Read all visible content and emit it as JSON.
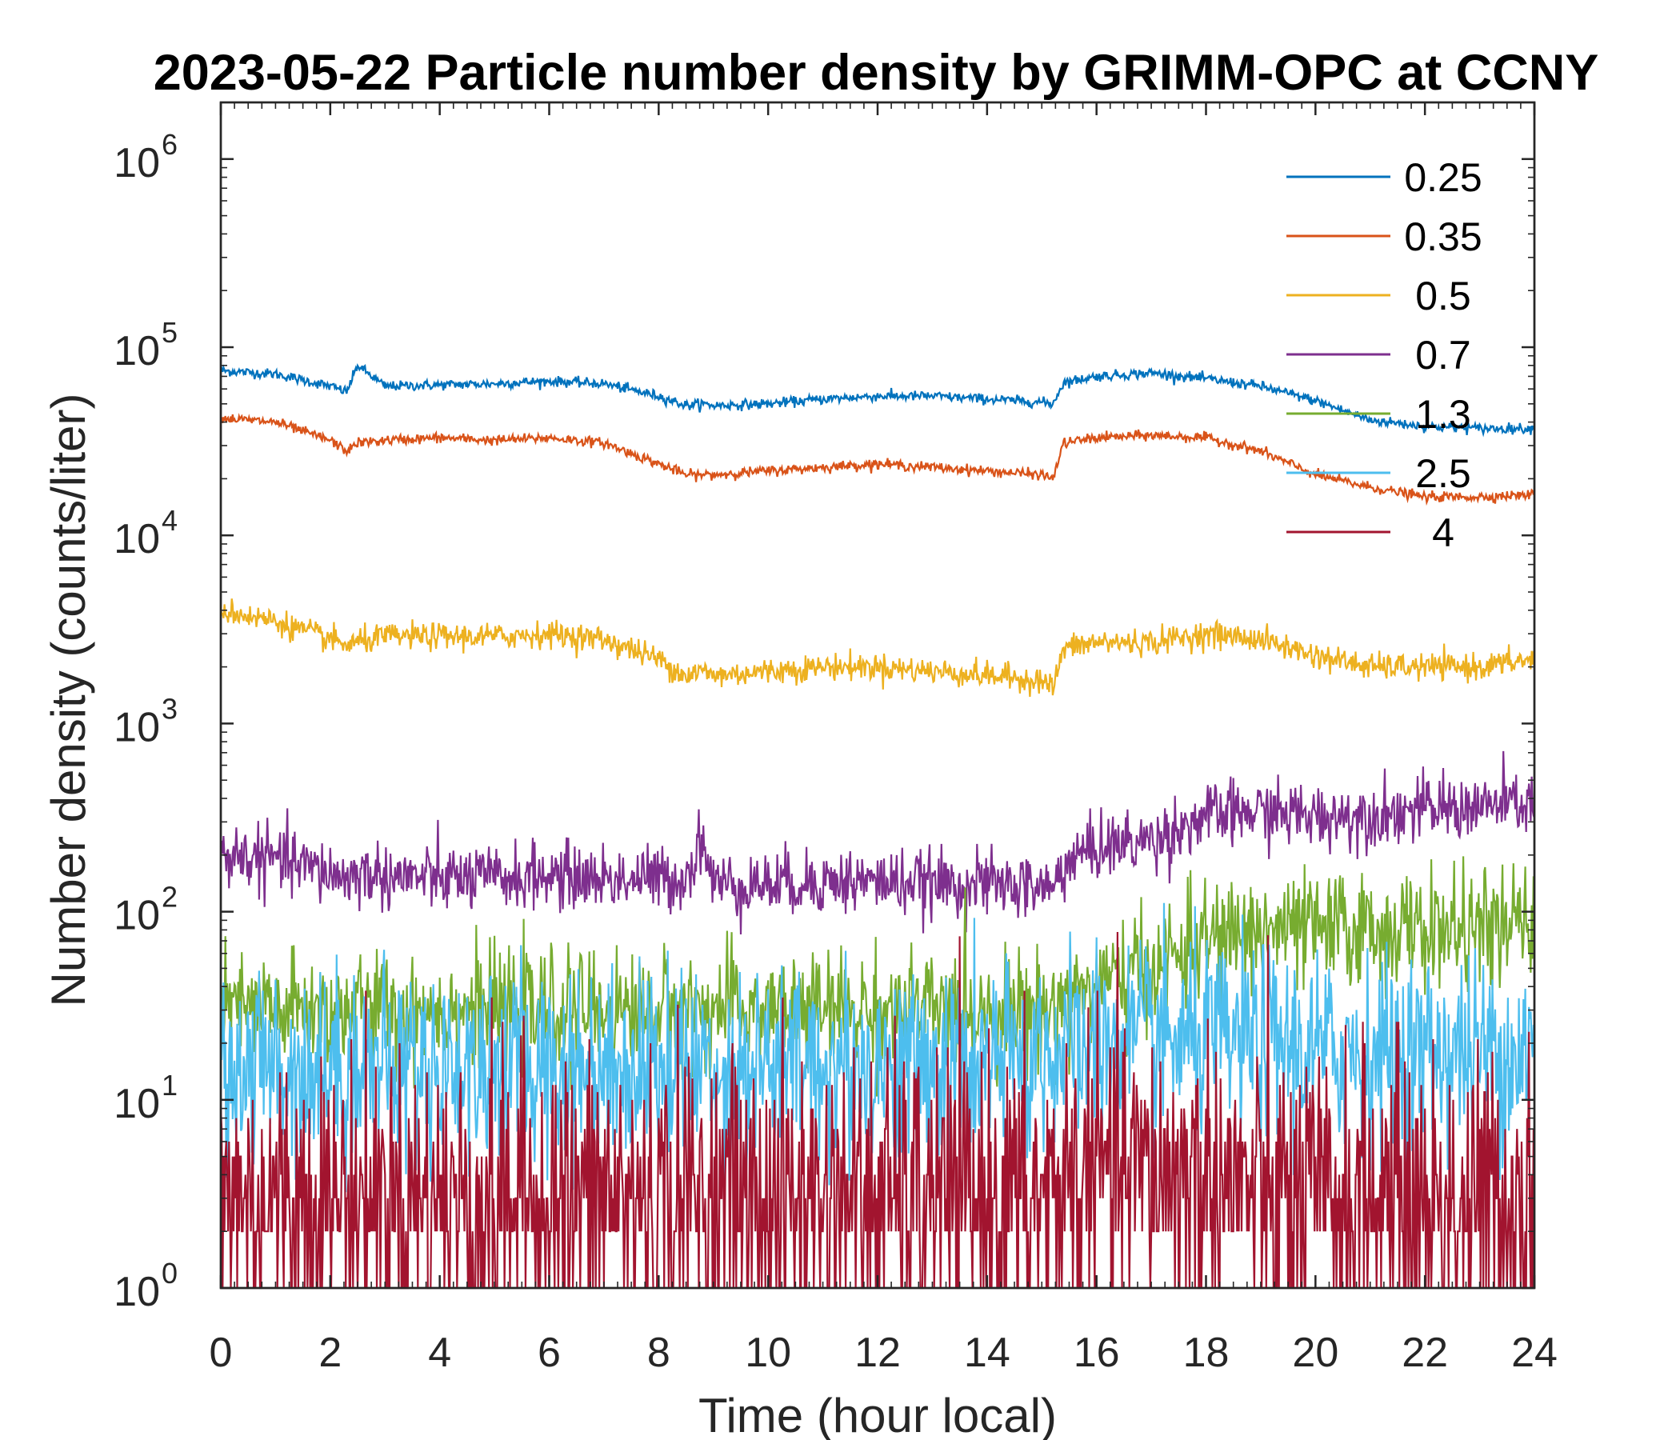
{
  "chart_data": {
    "type": "line",
    "title": "2023-05-22 Particle number density by GRIMM-OPC at CCNY",
    "xlabel": "Time (hour local)",
    "ylabel": "Number density (counts/liter)",
    "xlim": [
      0,
      24
    ],
    "ylim": [
      1,
      2000000
    ],
    "yscale": "log",
    "x_ticks": [
      0,
      2,
      4,
      6,
      8,
      10,
      12,
      14,
      16,
      18,
      20,
      22,
      24
    ],
    "x_tick_labels": [
      "0",
      "2",
      "4",
      "6",
      "8",
      "10",
      "12",
      "14",
      "16",
      "18",
      "20",
      "22",
      "24"
    ],
    "y_ticks": [
      1,
      10,
      100,
      1000,
      10000,
      100000,
      1000000
    ],
    "y_tick_labels": [
      {
        "base": "10",
        "exp": "0"
      },
      {
        "base": "10",
        "exp": "1"
      },
      {
        "base": "10",
        "exp": "2"
      },
      {
        "base": "10",
        "exp": "3"
      },
      {
        "base": "10",
        "exp": "4"
      },
      {
        "base": "10",
        "exp": "5"
      },
      {
        "base": "10",
        "exp": "6"
      }
    ],
    "grid": false,
    "legend_position": "top-right",
    "x": [
      0,
      1,
      2,
      2.3,
      2.5,
      3,
      4,
      5,
      6,
      7,
      8,
      8.5,
      8.8,
      9,
      10,
      11,
      12,
      13,
      14,
      15,
      15.2,
      15.4,
      16,
      17,
      18,
      19,
      20,
      21,
      22,
      23,
      24
    ],
    "series": [
      {
        "name": "0.25",
        "color": "#0072BD",
        "noise": 0.03,
        "values": [
          75000,
          72000,
          62000,
          58000,
          80000,
          62000,
          63000,
          64000,
          66000,
          64000,
          55000,
          49000,
          50000,
          49000,
          50000,
          53000,
          55000,
          55000,
          53000,
          51000,
          50000,
          65000,
          70000,
          73000,
          68000,
          62000,
          52000,
          41000,
          38000,
          37000,
          37000
        ]
      },
      {
        "name": "0.35",
        "color": "#D95319",
        "noise": 0.03,
        "values": [
          42000,
          40000,
          32000,
          28000,
          31000,
          32000,
          33000,
          32000,
          33000,
          31000,
          24000,
          21000,
          21000,
          21000,
          22000,
          23000,
          24000,
          23000,
          22000,
          21000,
          20000,
          31000,
          33000,
          34000,
          33000,
          28000,
          21000,
          18000,
          16000,
          16000,
          16500
        ]
      },
      {
        "name": "0.5",
        "color": "#EDB120",
        "noise": 0.08,
        "values": [
          4000,
          3500,
          2800,
          2600,
          2700,
          2900,
          2900,
          2900,
          3000,
          2800,
          2200,
          1800,
          1900,
          1800,
          1900,
          2000,
          2000,
          1900,
          1800,
          1700,
          1550,
          2500,
          2700,
          2700,
          3000,
          2800,
          2300,
          2000,
          2000,
          2000,
          2200
        ]
      },
      {
        "name": "0.7",
        "color": "#7E2F8E",
        "noise": 0.2,
        "values": [
          200,
          190,
          160,
          150,
          160,
          155,
          150,
          150,
          155,
          150,
          150,
          150,
          250,
          140,
          140,
          145,
          145,
          140,
          140,
          135,
          130,
          180,
          220,
          240,
          320,
          340,
          320,
          330,
          350,
          360,
          380
        ]
      },
      {
        "name": "1.3",
        "color": "#77AC30",
        "noise": 0.35,
        "values": [
          30,
          30,
          30,
          30,
          30,
          30,
          30,
          30,
          30,
          30,
          30,
          30,
          30,
          30,
          30,
          30,
          30,
          30,
          30,
          30,
          30,
          35,
          40,
          50,
          70,
          80,
          80,
          80,
          80,
          80,
          85
        ]
      },
      {
        "name": "2.5",
        "color": "#4DBEEE",
        "noise": 0.6,
        "values": [
          15,
          15,
          15,
          15,
          15,
          15,
          15,
          15,
          15,
          15,
          15,
          15,
          15,
          15,
          15,
          15,
          15,
          15,
          15,
          18,
          18,
          18,
          20,
          20,
          20,
          20,
          18,
          18,
          18,
          18,
          18
        ]
      },
      {
        "name": "4",
        "color": "#A2142F",
        "noise": 0.9,
        "values": [
          3,
          3,
          3,
          3,
          3,
          3,
          3,
          3,
          3,
          3,
          3,
          3,
          3,
          3,
          3,
          3,
          3,
          3,
          3,
          3,
          3,
          4,
          4,
          4,
          4,
          3,
          3,
          3,
          3,
          3,
          3
        ]
      }
    ]
  }
}
